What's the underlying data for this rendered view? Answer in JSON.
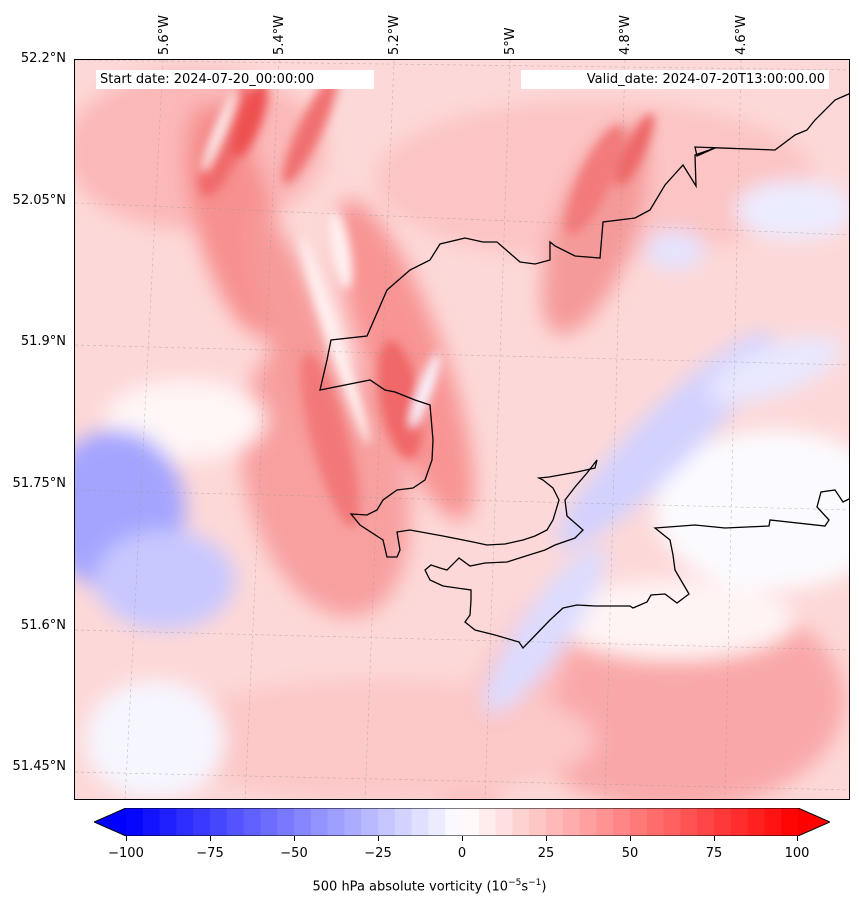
{
  "map": {
    "start_date": "Start date: 2024-07-20_00:00:00",
    "valid_date": "Valid_date: 2024-07-20T13:00:00.00",
    "lat_labels": [
      "52.2°N",
      "52.05°N",
      "51.9°N",
      "51.75°N",
      "51.6°N",
      "51.45°N"
    ],
    "lon_labels": [
      "5.6°W",
      "5.4°W",
      "5.2°W",
      "5°W",
      "4.8°W",
      "4.6°W"
    ],
    "field": "500 hPa absolute vorticity",
    "coastline_color": "#000000"
  },
  "colorbar": {
    "ticks": [
      "−100",
      "−75",
      "−50",
      "−25",
      "0",
      "25",
      "50",
      "75",
      "100"
    ],
    "label_text": "500 hPa absolute vorticity (10",
    "label_exp1": "−5",
    "label_mid": "s",
    "label_exp2": "−1",
    "label_end": ")",
    "min": -100,
    "max": 100,
    "low_color": "#0000ff",
    "high_color": "#ff0000",
    "extend": "both"
  }
}
